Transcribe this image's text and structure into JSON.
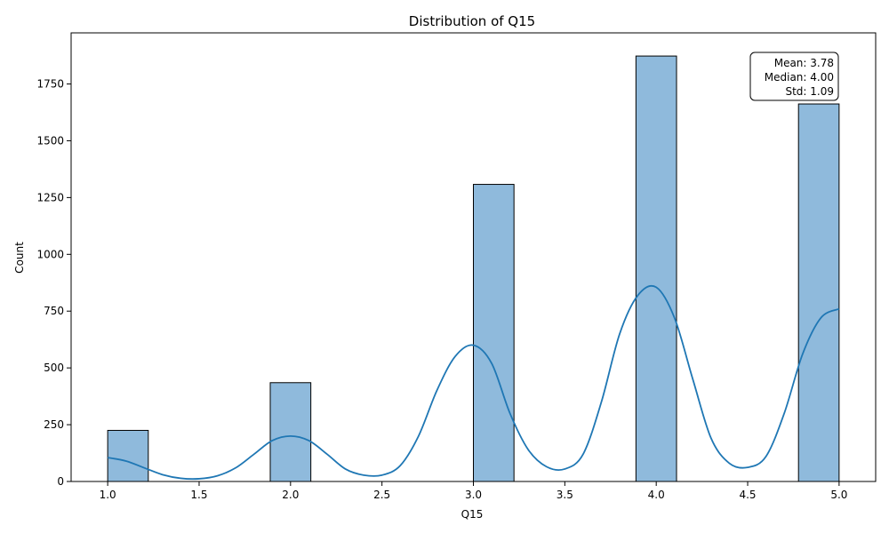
{
  "chart_data": {
    "type": "bar",
    "title": "Distribution of Q15",
    "xlabel": "Q15",
    "ylabel": "Count",
    "xlim": [
      0.8,
      5.2
    ],
    "ylim": [
      0,
      1975
    ],
    "x_ticks": [
      "1.0",
      "1.5",
      "2.0",
      "2.5",
      "3.0",
      "3.5",
      "4.0",
      "4.5",
      "5.0"
    ],
    "y_ticks": [
      "0",
      "250",
      "500",
      "750",
      "1000",
      "1250",
      "1500",
      "1750"
    ],
    "bins": [
      {
        "start": 1.0,
        "end": 1.222,
        "count": 225
      },
      {
        "start": 1.889,
        "end": 2.111,
        "count": 435
      },
      {
        "start": 3.0,
        "end": 3.222,
        "count": 1308
      },
      {
        "start": 3.889,
        "end": 4.111,
        "count": 1873
      },
      {
        "start": 4.778,
        "end": 5.0,
        "count": 1662
      }
    ],
    "kde": {
      "name": "",
      "x": [
        1.0,
        1.1,
        1.2,
        1.3,
        1.4,
        1.5,
        1.6,
        1.7,
        1.8,
        1.9,
        2.0,
        2.1,
        2.2,
        2.3,
        2.4,
        2.5,
        2.6,
        2.7,
        2.8,
        2.9,
        3.0,
        3.1,
        3.2,
        3.3,
        3.4,
        3.5,
        3.6,
        3.7,
        3.8,
        3.9,
        4.0,
        4.1,
        4.2,
        4.3,
        4.4,
        4.5,
        4.6,
        4.7,
        4.8,
        4.9,
        5.0
      ],
      "y": [
        105,
        90,
        60,
        30,
        14,
        12,
        25,
        60,
        120,
        180,
        200,
        180,
        120,
        55,
        28,
        28,
        70,
        200,
        400,
        550,
        600,
        520,
        300,
        140,
        65,
        55,
        120,
        350,
        650,
        820,
        855,
        720,
        450,
        190,
        80,
        62,
        110,
        300,
        560,
        720,
        760
      ]
    },
    "stats": {
      "mean": "Mean: 3.78",
      "median": "Median: 4.00",
      "std": "Std: 1.09"
    },
    "bar_color": "#8fbadc",
    "bar_edge": "#000000",
    "kde_color": "#1f77b4",
    "grid": false,
    "legend": "none"
  }
}
